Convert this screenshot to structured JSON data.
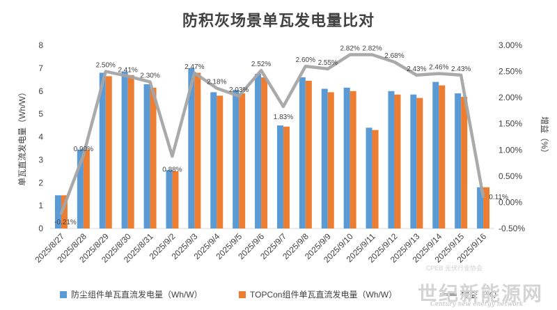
{
  "colors": {
    "series1": "#5b9bd5",
    "series2": "#ed7d31",
    "line": "#a5a5a5",
    "text": "#404040"
  },
  "chart_data": {
    "type": "bar",
    "title": "防积灰场景单瓦发电量比对",
    "ylabel": "单瓦直流发电量（Wh/W）",
    "y2label": "增益（%）",
    "ylim": [
      0,
      8
    ],
    "yticks": [
      "0",
      "1",
      "2",
      "3",
      "4",
      "5",
      "6",
      "7",
      "8"
    ],
    "y2lim": [
      -0.5,
      3.0
    ],
    "y2ticks": [
      "-0.50%",
      "0.00%",
      "0.50%",
      "1.00%",
      "1.50%",
      "2.00%",
      "2.50%",
      "3.00%"
    ],
    "grid": false,
    "legend_position": "bottom",
    "categories": [
      "2025/8/27",
      "2025/8/28",
      "2025/8/29",
      "2025/8/30",
      "2025/8/31",
      "2025/9/2",
      "2025/9/3",
      "2025/9/4",
      "2025/9/5",
      "2025/9/6",
      "2025/9/7",
      "2025/9/8",
      "2025/9/9",
      "2025/9/10",
      "2025/9/11",
      "2025/9/12",
      "2025/9/13",
      "2025/9/14",
      "2025/9/15",
      "2025/9/16"
    ],
    "series": [
      {
        "name": "防尘组件单瓦直流发电量（Wh/W）",
        "kind": "bar",
        "axis": "left",
        "values": [
          1.45,
          3.45,
          6.8,
          6.85,
          6.3,
          2.55,
          7.0,
          5.95,
          6.05,
          6.75,
          4.5,
          6.6,
          6.1,
          6.15,
          4.4,
          6.0,
          5.85,
          6.4,
          5.9,
          1.8
        ]
      },
      {
        "name": "TOPCon组件单瓦直流发电量（Wh/W）",
        "kind": "bar",
        "axis": "left",
        "values": [
          1.45,
          3.45,
          6.65,
          6.7,
          6.15,
          2.5,
          6.8,
          5.8,
          5.9,
          6.6,
          4.45,
          6.45,
          5.95,
          6.0,
          4.3,
          5.85,
          5.7,
          6.25,
          5.75,
          1.8
        ]
      },
      {
        "name": "增益（%）",
        "kind": "line",
        "axis": "right",
        "values": [
          -0.21,
          0.9,
          2.5,
          2.41,
          2.3,
          0.88,
          2.47,
          2.18,
          2.03,
          2.52,
          1.83,
          2.6,
          2.55,
          2.82,
          2.82,
          2.68,
          2.43,
          2.46,
          2.43,
          0.11
        ],
        "labels": [
          "-0.21%",
          "0.90%",
          "2.50%",
          "2.41%",
          "2.30%",
          "0.88%",
          "2.47%",
          "2.18%",
          "2.03%",
          "2.52%",
          "1.83%",
          "2.60%",
          "2.55%",
          "2.82%",
          "2.82%",
          "2.68%",
          "2.43%",
          "2.46%",
          "2.43%",
          "0.11%"
        ]
      }
    ]
  },
  "watermark": {
    "main": "世纪新能源网",
    "sub": "Century new energy network",
    "top": "CPEB 光伏行业协会"
  }
}
